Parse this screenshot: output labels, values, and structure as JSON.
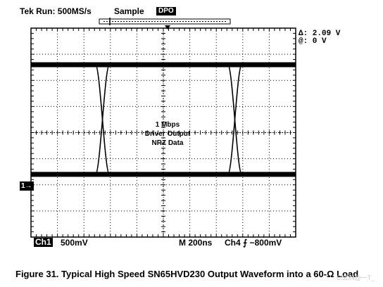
{
  "header": {
    "title": "Tek Run: 500MS/s",
    "mode": "Sample",
    "dpo": "DPO"
  },
  "measurements": {
    "delta": "Δ: 2.09 V",
    "at": "@: 0 V"
  },
  "scope_readout": {
    "ch1_label": "Ch1",
    "ch1_scale": "500mV",
    "time_scale": "M  200ns",
    "trigger": "Ch4 ⨍  −800mV",
    "ground_marker": "1→"
  },
  "caption": "Figure 31.  Typical High Speed SN65HVD230 Output Waveform into a 60-Ω Load",
  "watermark": "CSDN@一T_",
  "chart_data": {
    "type": "line",
    "title": "",
    "annotation": [
      "1 Mbps",
      "Driver Output",
      "NRZ Data"
    ],
    "xlabel": "",
    "ylabel": "",
    "grid": true,
    "x_divisions": 10,
    "y_divisions": 8,
    "time_per_div_ns": 200,
    "volts_per_div_mV": 500,
    "xlim_ns": [
      0,
      2000
    ],
    "ylim_div": [
      -4,
      4
    ],
    "levels_div": {
      "high": 2.6,
      "low": -1.6
    },
    "crossings_ns": [
      540,
      1540
    ]
  }
}
